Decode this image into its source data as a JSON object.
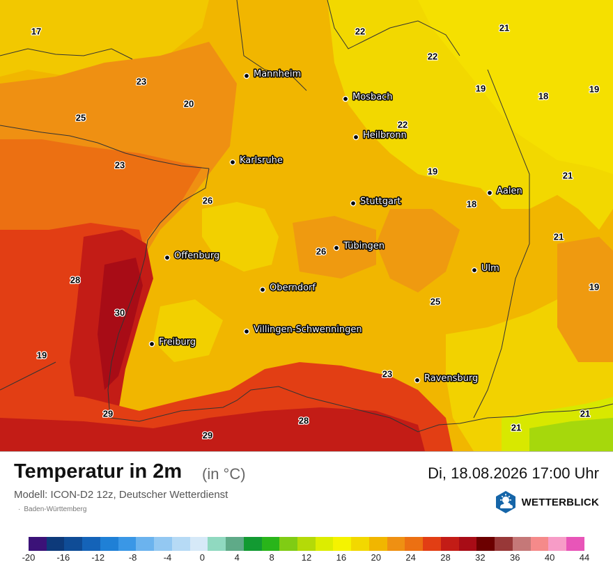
{
  "map": {
    "region": "Baden-Württemberg",
    "cities": [
      {
        "name": "Mannheim"
      },
      {
        "name": "Mosbach"
      },
      {
        "name": "Heilbronn"
      },
      {
        "name": "Karlsruhe"
      },
      {
        "name": "Stuttgart"
      },
      {
        "name": "Aalen"
      },
      {
        "name": "Tübingen"
      },
      {
        "name": "Offenburg"
      },
      {
        "name": "Ulm"
      },
      {
        "name": "Oberndorf"
      },
      {
        "name": "Villingen-Schwenningen"
      },
      {
        "name": "Freiburg"
      },
      {
        "name": "Ravensburg"
      }
    ],
    "values": [
      "17",
      "22",
      "21",
      "22",
      "23",
      "20",
      "19",
      "18",
      "19",
      "25",
      "22",
      "23",
      "19",
      "26",
      "21",
      "18",
      "21",
      "26",
      "28",
      "25",
      "30",
      "19",
      "19",
      "23",
      "29",
      "28",
      "29",
      "21",
      "21"
    ]
  },
  "header": {
    "title": "Temperatur in 2m",
    "unit": "(in °C)",
    "datetime": "Di, 18.08.2026 17:00 Uhr",
    "model": "Modell: ICON-D2 12z, Deutscher Wetterdienst"
  },
  "logo": {
    "text": "WETTERBLICK",
    "icon": "sun-cloud-icon"
  },
  "legend": {
    "colors": [
      "#3b1278",
      "#0d3a7a",
      "#0f4c96",
      "#1463b8",
      "#1f80d6",
      "#3a97e6",
      "#6bb3ee",
      "#93c8f2",
      "#b6daf5",
      "#d6e9f8",
      "#90d9c0",
      "#5faa88",
      "#129a32",
      "#29b51a",
      "#80cc14",
      "#b4da08",
      "#dced00",
      "#f5f300",
      "#f2d800",
      "#f1b600",
      "#ef9012",
      "#ec7012",
      "#e23e14",
      "#c31c16",
      "#a80c16",
      "#6c0000",
      "#983838",
      "#c57878",
      "#f58a8a",
      "#f79cc7",
      "#e855b8"
    ],
    "labels": [
      "-20",
      "-16",
      "-12",
      "-8",
      "-4",
      "0",
      "4",
      "8",
      "12",
      "16",
      "20",
      "24",
      "28",
      "32",
      "36",
      "40",
      "44"
    ]
  }
}
